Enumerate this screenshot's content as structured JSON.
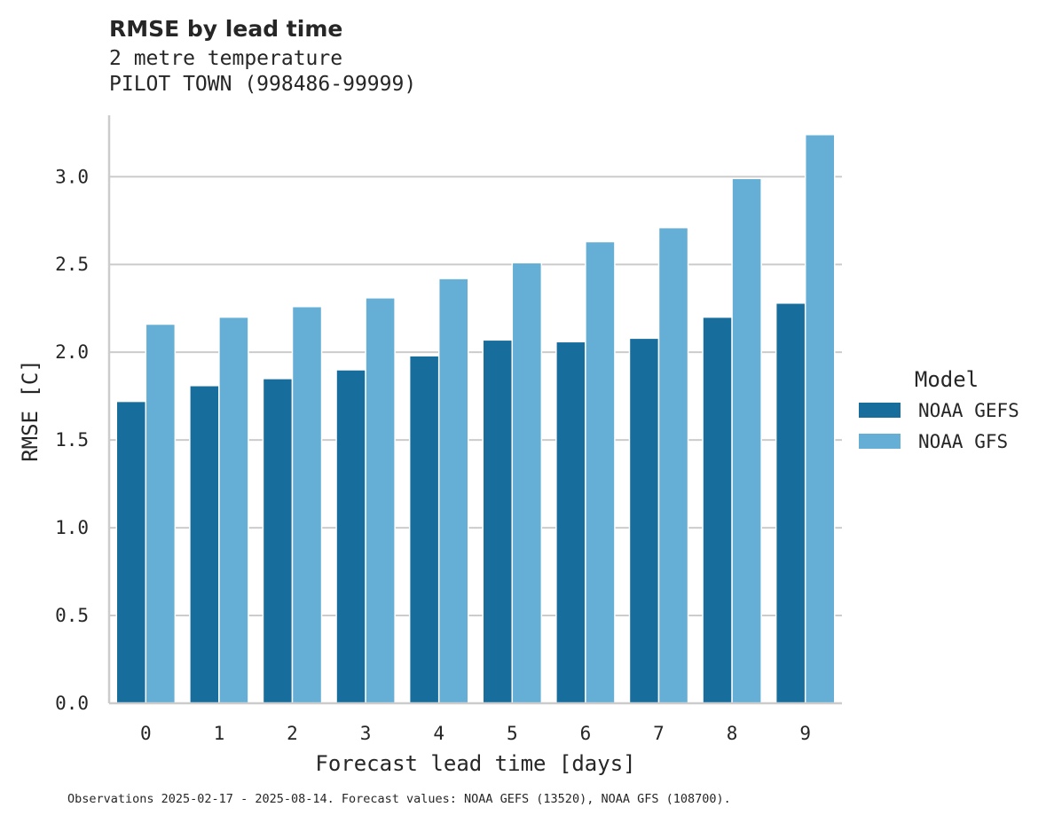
{
  "chart_data": {
    "type": "bar",
    "title": "RMSE by lead time",
    "subtitle_lines": [
      "2 metre temperature",
      "PILOT TOWN (998486-99999)"
    ],
    "xlabel": "Forecast lead time [days]",
    "ylabel": "RMSE [C]",
    "categories": [
      "0",
      "1",
      "2",
      "3",
      "4",
      "5",
      "6",
      "7",
      "8",
      "9"
    ],
    "ylim": [
      0,
      3.35
    ],
    "yticks": [
      0.0,
      0.5,
      1.0,
      1.5,
      2.0,
      2.5,
      3.0
    ],
    "ytick_labels": [
      "0.0",
      "0.5",
      "1.0",
      "1.5",
      "2.0",
      "2.5",
      "3.0"
    ],
    "grid": "horizontal",
    "legend": {
      "title": "Model",
      "placement": "right"
    },
    "series": [
      {
        "name": "NOAA GEFS",
        "color": "#176d9c",
        "values": [
          1.72,
          1.81,
          1.85,
          1.9,
          1.98,
          2.07,
          2.06,
          2.08,
          2.2,
          2.28
        ]
      },
      {
        "name": "NOAA GFS",
        "color": "#65aed6",
        "values": [
          2.16,
          2.2,
          2.26,
          2.31,
          2.42,
          2.51,
          2.63,
          2.71,
          2.99,
          3.24
        ]
      }
    ],
    "footnote": "Observations 2025-02-17 - 2025-08-14. Forecast values: NOAA GEFS (13520), NOAA GFS (108700)."
  }
}
